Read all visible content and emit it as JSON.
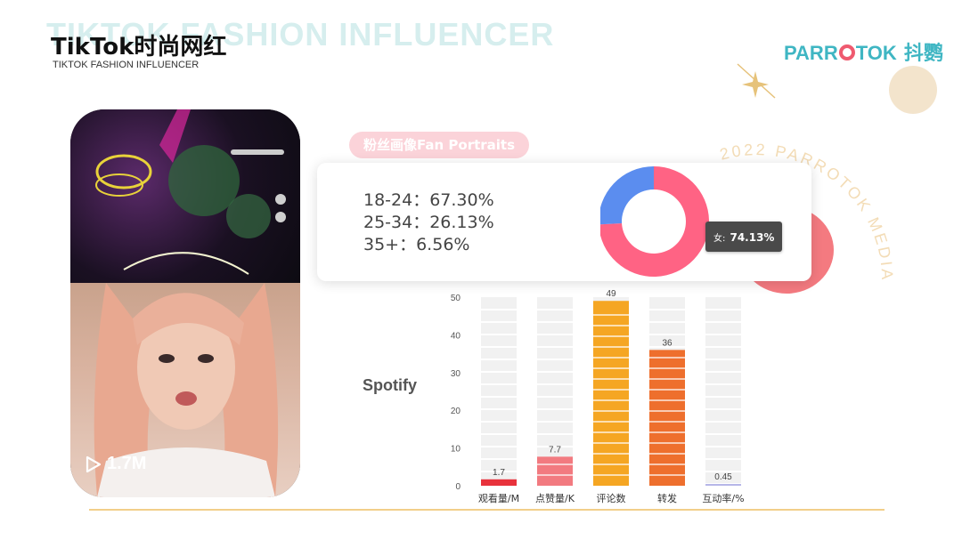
{
  "header": {
    "watermark": "TIKTOK FASHION INFLUENCER",
    "title": "TikTok时尚网红",
    "subtitle": "TIKTOK FASHION INFLUENCER"
  },
  "logo": {
    "text_pre": "PARR",
    "text_post": "TOK",
    "text_cn": "抖鹦"
  },
  "decor": {
    "arc_text": "2022 PARROTOK MEDIA"
  },
  "video": {
    "views": "1.7M"
  },
  "fan_portraits": {
    "tag": "粉丝画像Fan Portraits",
    "age_groups": [
      "18-24：67.30%",
      "25-34：26.13%",
      "35+：6.56%"
    ],
    "gender": {
      "female_pct": 74.13,
      "male_pct": 25.87,
      "tooltip_label": "女:",
      "tooltip_value": "74.13%"
    }
  },
  "platform": {
    "label": "Spotify"
  },
  "colors": {
    "female": "#ff6384",
    "male": "#5b8def",
    "bar_red": "#e8323c",
    "bar_pink": "#f27a80",
    "bar_yellow": "#f5a623",
    "bar_orange": "#ee6f2d",
    "bar_lavender": "#b6b6e8"
  },
  "chart_data": {
    "type": "bar",
    "categories": [
      "观看量/M",
      "点赞量/K",
      "评论数",
      "转发",
      "互动率/%"
    ],
    "values": [
      1.7,
      7.7,
      49,
      36,
      0.45
    ],
    "value_labels": [
      "1.7",
      "7.7",
      "49",
      "36",
      "0.45"
    ],
    "ylim": [
      0,
      50
    ],
    "yticks": [
      0,
      10,
      20,
      30,
      40,
      50
    ],
    "grid": false,
    "legend": "none"
  }
}
